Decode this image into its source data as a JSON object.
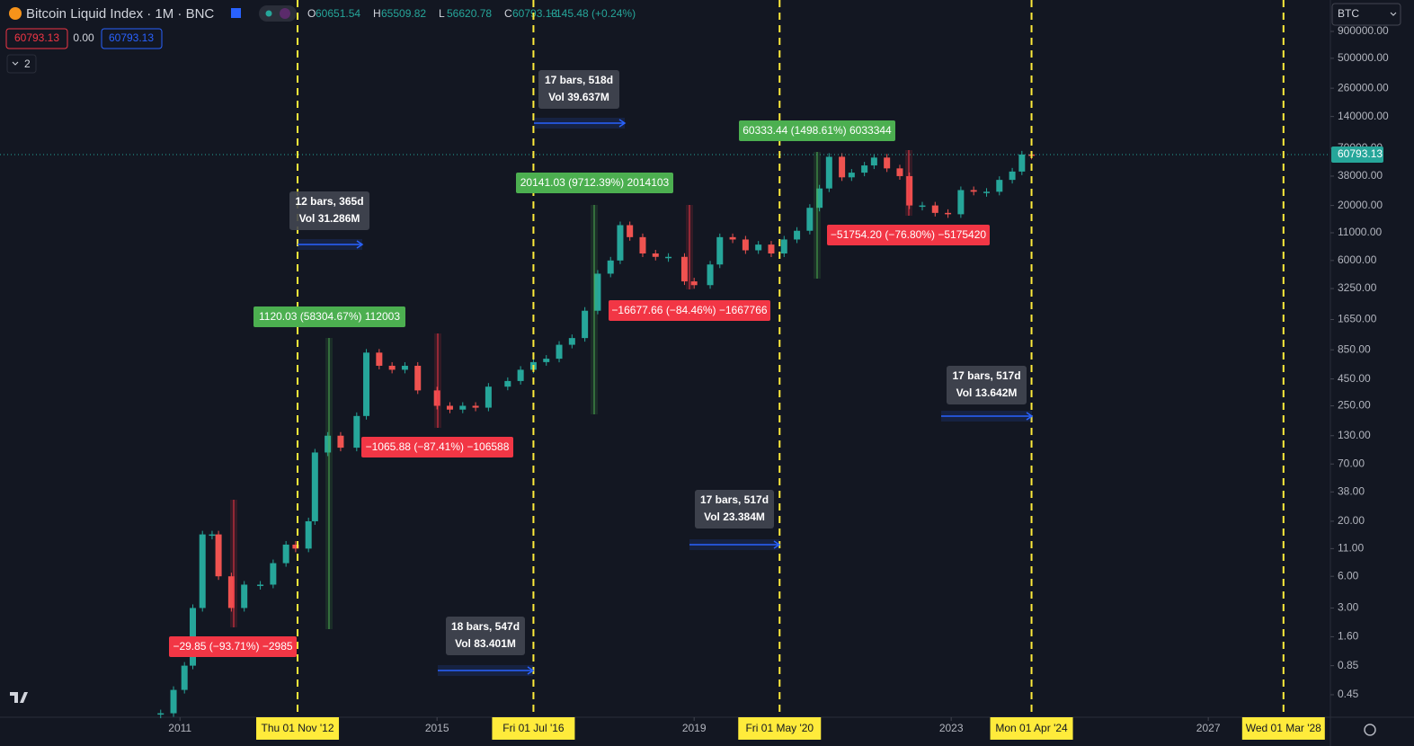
{
  "header": {
    "title": "Bitcoin Liquid Index · 1M · BNC",
    "ohlc": [
      {
        "label": "O",
        "value": "60651.54"
      },
      {
        "label": "H",
        "value": "65509.82"
      },
      {
        "label": "L",
        "value": "56620.78"
      },
      {
        "label": "C",
        "value": "60793.13"
      }
    ],
    "change": "+145.48 (+0.24%)",
    "price_boxes": [
      "60793.13",
      "0.00",
      "60793.13"
    ],
    "indicator_count": "2",
    "symbol": "BTC"
  },
  "chart_data": {
    "type": "candlestick",
    "log_scale": true,
    "x": [
      2010.7,
      2010.9,
      2011.07,
      2011.2,
      2011.35,
      2011.5,
      2011.6,
      2011.8,
      2012.0,
      2012.25,
      2012.45,
      2012.65,
      2012.8,
      2013.0,
      2013.1,
      2013.3,
      2013.5,
      2013.75,
      2013.9,
      2014.1,
      2014.3,
      2014.5,
      2014.7,
      2015.0,
      2015.2,
      2015.4,
      2015.6,
      2015.8,
      2016.1,
      2016.3,
      2016.5,
      2016.7,
      2016.9,
      2017.1,
      2017.3,
      2017.5,
      2017.7,
      2017.85,
      2018.0,
      2018.2,
      2018.4,
      2018.6,
      2018.85,
      2019.0,
      2019.25,
      2019.4,
      2019.6,
      2019.8,
      2020.0,
      2020.2,
      2020.4,
      2020.6,
      2020.8,
      2020.95,
      2021.1,
      2021.3,
      2021.45,
      2021.65,
      2021.8,
      2022.0,
      2022.2,
      2022.35,
      2022.55,
      2022.75,
      2022.95,
      2023.15,
      2023.35,
      2023.55,
      2023.75,
      2023.95,
      2024.1,
      2024.25
    ],
    "closes": [
      0.3,
      0.5,
      0.85,
      3,
      15,
      15,
      6,
      3,
      5,
      5,
      8,
      12,
      11,
      20,
      90,
      130,
      100,
      200,
      800,
      600,
      550,
      600,
      350,
      250,
      230,
      250,
      240,
      380,
      430,
      550,
      650,
      700,
      950,
      1100,
      2000,
      4500,
      6000,
      13000,
      10000,
      7000,
      6500,
      6500,
      3800,
      3500,
      5500,
      10000,
      9500,
      7500,
      8500,
      7000,
      9500,
      11500,
      19000,
      29000,
      58000,
      37000,
      41000,
      48000,
      57000,
      45000,
      38000,
      20000,
      20000,
      17000,
      16500,
      28000,
      27000,
      27000,
      35000,
      42000,
      61000,
      60793.13
    ],
    "colors": {
      "up": "#26a69a",
      "down": "#ef5350"
    },
    "xlim": [
      2008.2,
      2028.9
    ],
    "xticks": [
      2011,
      2015,
      2019,
      2023,
      2027
    ],
    "ylim": [
      0.275,
      1790000
    ],
    "yticks": [
      {
        "value": 900000,
        "label": "900000.00"
      },
      {
        "value": 500000,
        "label": "500000.00"
      },
      {
        "value": 260000,
        "label": "260000.00"
      },
      {
        "value": 140000,
        "label": "140000.00"
      },
      {
        "value": 70000,
        "label": "70000.00"
      },
      {
        "value": 38000,
        "label": "38000.00"
      },
      {
        "value": 20000,
        "label": "20000.00"
      },
      {
        "value": 11000,
        "label": "11000.00"
      },
      {
        "value": 6000,
        "label": "6000.00"
      },
      {
        "value": 3250,
        "label": "3250.00"
      },
      {
        "value": 1650,
        "label": "1650.00"
      },
      {
        "value": 850,
        "label": "850.00"
      },
      {
        "value": 450,
        "label": "450.00"
      },
      {
        "value": 250,
        "label": "250.00"
      },
      {
        "value": 130,
        "label": "130.00"
      },
      {
        "value": 70,
        "label": "70.00"
      },
      {
        "value": 38,
        "label": "38.00"
      },
      {
        "value": 20,
        "label": "20.00"
      },
      {
        "value": 11,
        "label": "11.00"
      },
      {
        "value": 6,
        "label": "6.00"
      },
      {
        "value": 3,
        "label": "3.00"
      },
      {
        "value": 1.6,
        "label": "1.60"
      },
      0.85,
      0.45
    ],
    "last_price": 60793.13,
    "date_markers": [
      {
        "value": 2012.83,
        "label": "Thu 01 Nov '12"
      },
      {
        "value": 2016.5,
        "label": "Fri 01 Jul '16"
      },
      {
        "value": 2020.33,
        "label": "Fri 01 May '20"
      },
      {
        "value": 2024.25,
        "label": "Mon 01 Apr '24"
      },
      {
        "value": 2028.17,
        "label": "Wed 01 Mar '28"
      }
    ],
    "measures": [
      {
        "text": "−29.85 (−93.71%) −2985",
        "color": "#f23645"
      },
      {
        "text": "1120.03 (58304.67%) 112003",
        "color": "#4caf50"
      },
      {
        "text": "−1065.88 (−87.41%) −106588",
        "color": "#f23645"
      },
      {
        "text": "20141.03 (9712.39%) 2014103",
        "color": "#4caf50"
      },
      {
        "text": "−16677.66 (−84.46%) −1667766",
        "color": "#f23645"
      },
      {
        "text": "60333.44 (1498.61%) 6033344",
        "color": "#4caf50"
      },
      {
        "text": "−51754.20 (−76.80%) −5175420",
        "color": "#f23645"
      }
    ],
    "ranges": [
      {
        "bars": "12 bars, 365d",
        "vol": "Vol 31.286M"
      },
      {
        "bars": "18 bars, 547d",
        "vol": "Vol 83.401M"
      },
      {
        "bars": "17 bars, 518d",
        "vol": "Vol 39.637M"
      },
      {
        "bars": "17 bars, 517d",
        "vol": "Vol 23.384M"
      },
      {
        "bars": "17 bars, 517d",
        "vol": "Vol 13.642M"
      }
    ]
  }
}
